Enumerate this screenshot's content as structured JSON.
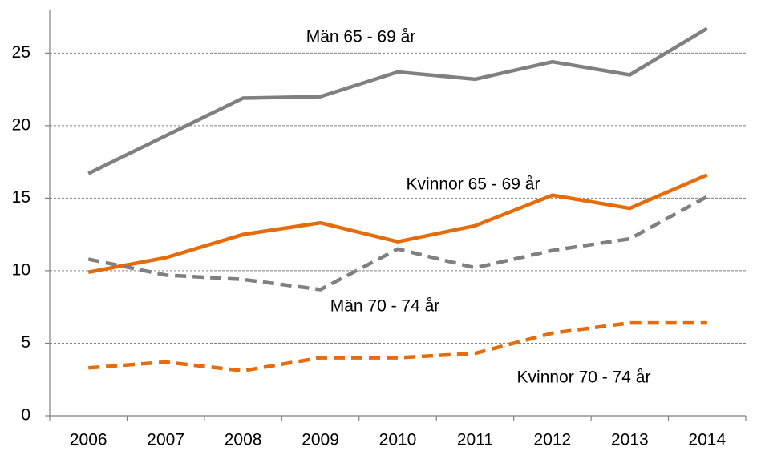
{
  "chart_data": {
    "type": "line",
    "categories": [
      "2006",
      "2007",
      "2008",
      "2009",
      "2010",
      "2011",
      "2012",
      "2013",
      "2014"
    ],
    "series": [
      {
        "name": "Män 65 - 69 år",
        "color": "#808080",
        "dash": false,
        "values": [
          16.7,
          19.3,
          21.9,
          22.0,
          23.7,
          23.2,
          24.4,
          23.5,
          26.7
        ]
      },
      {
        "name": "Kvinnor 65 - 69 år",
        "color": "#e46c0a",
        "dash": false,
        "values": [
          9.9,
          10.9,
          12.5,
          13.3,
          12.0,
          13.1,
          15.2,
          14.3,
          16.6
        ]
      },
      {
        "name": "Män 70 - 74 år",
        "color": "#808080",
        "dash": true,
        "values": [
          10.8,
          9.7,
          9.4,
          8.7,
          11.5,
          10.2,
          11.4,
          12.2,
          15.1
        ]
      },
      {
        "name": "Kvinnor 70 - 74 år",
        "color": "#e46c0a",
        "dash": true,
        "values": [
          3.3,
          3.7,
          3.1,
          4.0,
          4.0,
          4.3,
          5.7,
          6.4,
          6.4
        ]
      }
    ],
    "ylim": [
      0,
      28
    ],
    "yticks": [
      0,
      5,
      10,
      15,
      20,
      25
    ],
    "grid": true
  }
}
